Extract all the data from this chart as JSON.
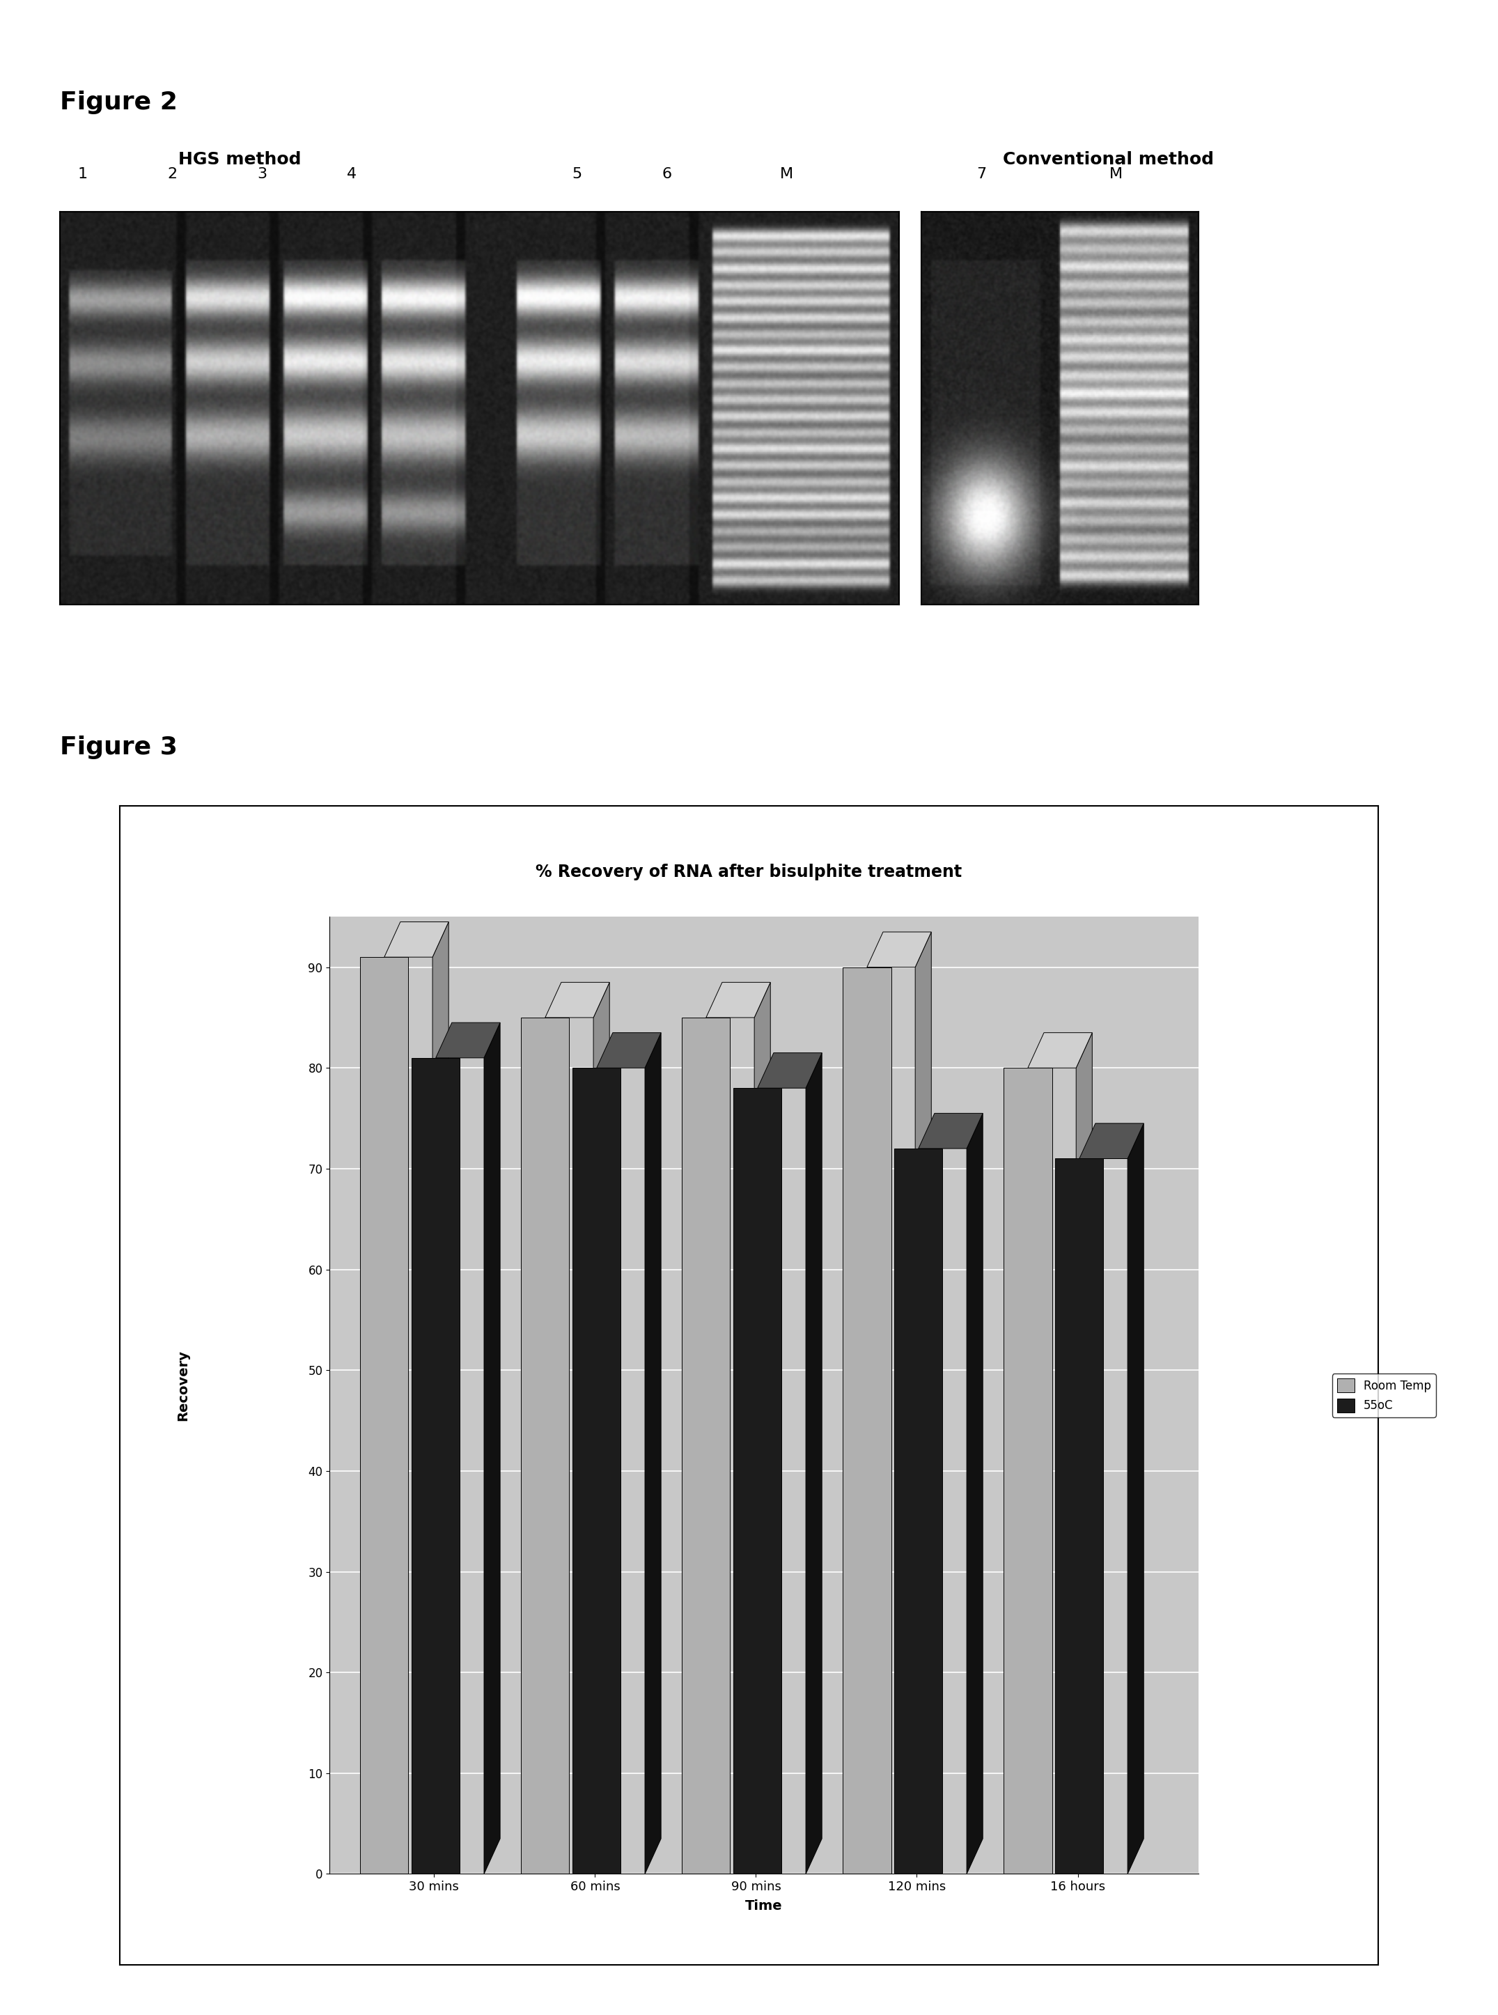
{
  "fig2_title": "Figure 2",
  "fig3_title": "Figure 3",
  "hgs_label": "HGS method",
  "conv_label": "Conventional method",
  "lane_labels_hgs": [
    "1",
    "2",
    "3",
    "4",
    "5",
    "6",
    "M"
  ],
  "lane_labels_conv": [
    "7",
    "M"
  ],
  "chart_title": "% Recovery of RNA after bisulphite treatment",
  "xlabel": "Time",
  "ylabel": "Recovery",
  "categories": [
    "30 mins",
    "60 mins",
    "90 mins",
    "120 mins",
    "16 hours"
  ],
  "room_temp_values": [
    91,
    85,
    85,
    90,
    80
  ],
  "temp55_values": [
    81,
    80,
    78,
    72,
    71
  ],
  "legend_labels": [
    "Room Temp",
    "55oC"
  ],
  "yticks": [
    0,
    10,
    20,
    30,
    40,
    50,
    60,
    70,
    80,
    90
  ],
  "fig_width": 21.51,
  "fig_height": 28.93
}
